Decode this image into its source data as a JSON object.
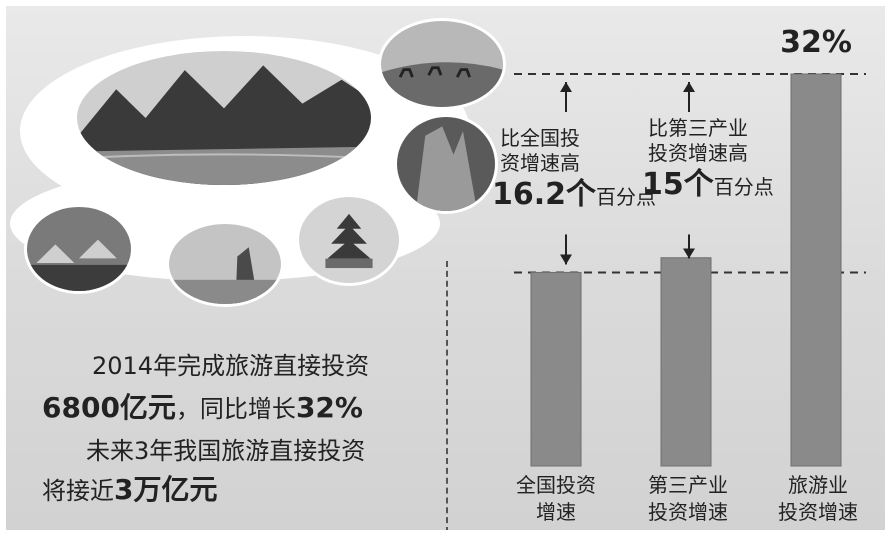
{
  "headline": {
    "line1": "2014年完成旅游直接投资",
    "line2_amount": "6800亿元",
    "line2_mid": "，同比增长",
    "line2_pct": "32%",
    "line3": "未来3年我国旅游直接投资",
    "line4_pre": "将接近",
    "line4_amount": "3万亿元"
  },
  "annotations": {
    "a1": {
      "text_line1": "比全国投",
      "text_line2": "资增速高",
      "value": "16.2个",
      "unit": "百分点"
    },
    "a2": {
      "text_line1": "比第三产业",
      "text_line2": "投资增速高",
      "value": "15个",
      "unit": "百分点"
    }
  },
  "chart_data": {
    "type": "bar",
    "categories": [
      {
        "line1": "全国投资",
        "line2": "增速"
      },
      {
        "line1": "第三产业",
        "line2": "投资增速"
      },
      {
        "line1": "旅游业",
        "line2": "投资增速"
      }
    ],
    "values": [
      15.8,
      17,
      32
    ],
    "data_labels": [
      "",
      "",
      "32%"
    ],
    "reference_lines": [
      32,
      15.8
    ],
    "ylim": [
      0,
      32
    ],
    "bar_color": "#8a8a8a"
  }
}
